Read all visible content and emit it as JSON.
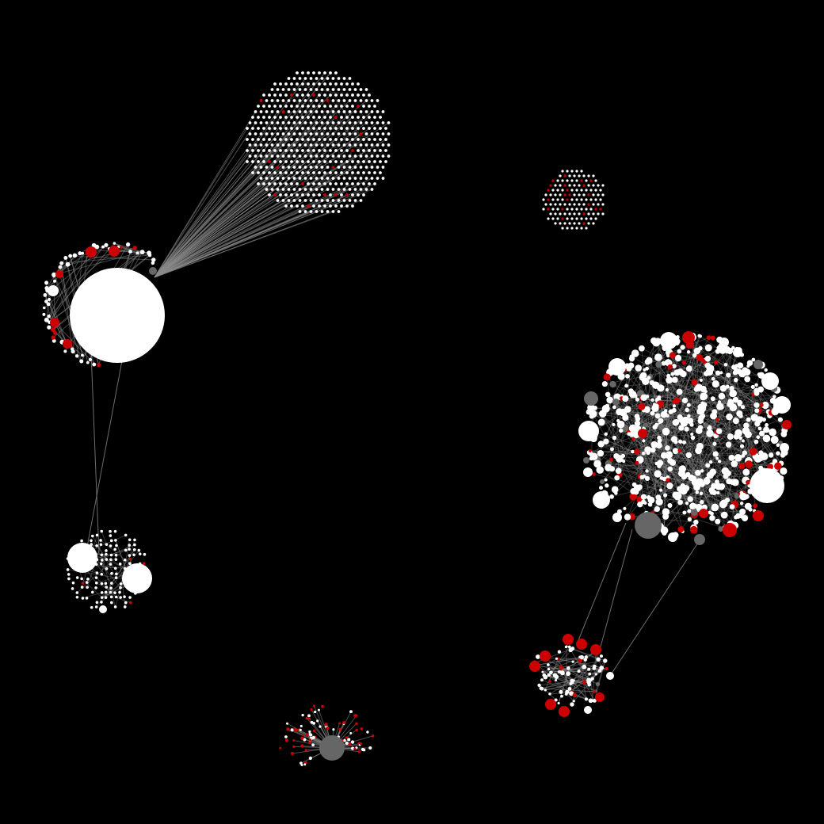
{
  "diagram": {
    "type": "network-graph",
    "background": "#000000",
    "edge_color": "#8a8a8a",
    "node_colors": {
      "white": "#ffffff",
      "red": "#cc0000",
      "gray": "#666666"
    },
    "node_count_shown": "approx",
    "clusters": [
      {
        "id": "upper-left-fan",
        "role": "dense grid cluster",
        "dominant_color": "white",
        "accent_color": "red"
      },
      {
        "id": "left-hub",
        "role": "hub with large central node",
        "dominant_color": "white",
        "accent_color": "red"
      },
      {
        "id": "lower-left",
        "role": "small cluster with two large white nodes",
        "dominant_color": "white",
        "accent_color": "red"
      },
      {
        "id": "top-right-small",
        "role": "small isolated cluster",
        "dominant_color": "white",
        "accent_color": "red"
      },
      {
        "id": "right-large",
        "role": "large dense cluster",
        "dominant_color": "white",
        "accent_color": "red"
      },
      {
        "id": "lower-right",
        "role": "cluster linked to right-large",
        "dominant_color": "white",
        "accent_color": "red"
      },
      {
        "id": "bottom-center",
        "role": "small cluster with gray hub",
        "dominant_color": "red",
        "accent_color": "gray"
      }
    ]
  }
}
